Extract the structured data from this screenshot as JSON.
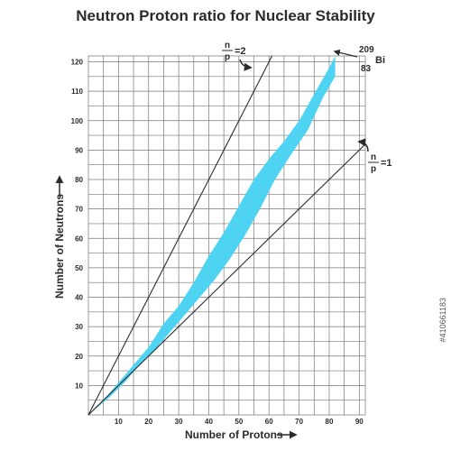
{
  "chart_data": {
    "type": "area",
    "title": "Neutron Proton ratio for Nuclear Stability",
    "xlabel": "Number of Protons",
    "ylabel": "Number of Neutrons",
    "x_ticks": [
      "10",
      "20",
      "30",
      "40",
      "50",
      "60",
      "70",
      "80",
      "90"
    ],
    "y_ticks": [
      "10",
      "20",
      "30",
      "40",
      "50",
      "60",
      "70",
      "80",
      "90",
      "100",
      "110",
      "120"
    ],
    "xlim": [
      0,
      92
    ],
    "ylim": [
      0,
      122
    ],
    "grid": true,
    "band_color": "#4fd3f2",
    "stability_band_upper": [
      [
        0,
        0
      ],
      [
        5,
        5
      ],
      [
        10,
        11
      ],
      [
        15,
        17
      ],
      [
        20,
        23
      ],
      [
        25,
        31
      ],
      [
        30,
        37
      ],
      [
        35,
        45
      ],
      [
        40,
        54
      ],
      [
        45,
        62
      ],
      [
        50,
        71
      ],
      [
        55,
        80
      ],
      [
        60,
        87
      ],
      [
        65,
        93
      ],
      [
        70,
        100
      ],
      [
        75,
        109
      ],
      [
        80,
        118
      ],
      [
        82,
        122
      ]
    ],
    "stability_band_lower": [
      [
        82,
        122
      ],
      [
        82,
        115
      ],
      [
        78,
        108
      ],
      [
        73,
        97
      ],
      [
        67,
        88
      ],
      [
        62,
        80
      ],
      [
        57,
        70
      ],
      [
        52,
        61
      ],
      [
        47,
        53
      ],
      [
        42,
        46
      ],
      [
        37,
        40
      ],
      [
        32,
        34
      ],
      [
        27,
        28
      ],
      [
        22,
        22
      ],
      [
        17,
        17
      ],
      [
        12,
        11
      ],
      [
        7,
        6
      ],
      [
        0,
        0
      ]
    ],
    "ratio_lines": [
      {
        "label_n": "n",
        "label_p": "p",
        "eq": "=2",
        "points": [
          [
            0,
            0
          ],
          [
            61,
            122
          ]
        ]
      },
      {
        "label_n": "n",
        "label_p": "p",
        "eq": "=1",
        "points": [
          [
            0,
            0
          ],
          [
            92,
            92
          ]
        ]
      }
    ],
    "bi_label": {
      "mass": "209",
      "atomic": "83",
      "symbol": "Bi"
    }
  },
  "watermark": "#410661183"
}
